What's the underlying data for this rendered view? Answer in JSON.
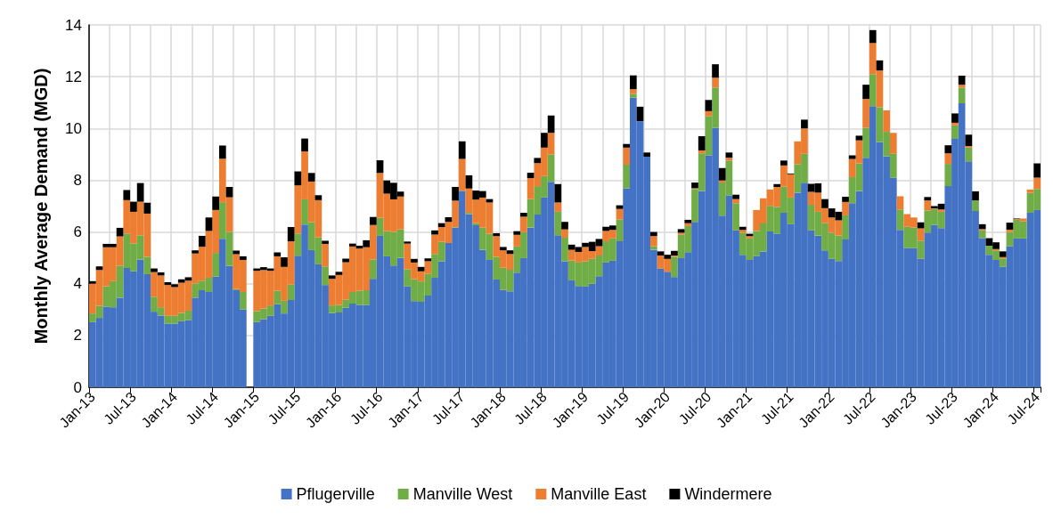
{
  "chart_data": {
    "type": "bar",
    "stacked": true,
    "ylabel": "Monthly Average Demand (MGD)",
    "ylim": [
      0,
      14
    ],
    "yticks": [
      0,
      2,
      4,
      6,
      8,
      10,
      12,
      14
    ],
    "grid": true,
    "legend": "bottom",
    "categories": [
      "Jan-13",
      null,
      null,
      null,
      null,
      null,
      "Jul-13",
      null,
      null,
      null,
      null,
      null,
      "Jan-14",
      null,
      null,
      null,
      null,
      null,
      "Jul-14",
      null,
      null,
      null,
      null,
      null,
      "Jan-15",
      null,
      null,
      null,
      null,
      null,
      "Jul-15",
      null,
      null,
      null,
      null,
      null,
      "Jan-16",
      null,
      null,
      null,
      null,
      null,
      "Jul-16",
      null,
      null,
      null,
      null,
      null,
      "Jan-17",
      null,
      null,
      null,
      null,
      null,
      "Jul-17",
      null,
      null,
      null,
      null,
      null,
      "Jan-18",
      null,
      null,
      null,
      null,
      null,
      "Jul-18",
      null,
      null,
      null,
      null,
      null,
      "Jan-19",
      null,
      null,
      null,
      null,
      null,
      "Jul-19",
      null,
      null,
      null,
      null,
      null,
      "Jan-20",
      null,
      null,
      null,
      null,
      null,
      "Jul-20",
      null,
      null,
      null,
      null,
      null,
      "Jan-21",
      null,
      null,
      null,
      null,
      null,
      "Jul-21",
      null,
      null,
      null,
      null,
      null,
      "Jan-22",
      null,
      null,
      null,
      null,
      null,
      "Jul-22",
      null,
      null,
      null,
      null,
      null,
      "Jan-23",
      null,
      null,
      null,
      null,
      null,
      "Jul-23",
      null,
      null,
      null,
      null,
      null,
      "Jan-24",
      null,
      null,
      null,
      null,
      null,
      "Jul-24"
    ],
    "series": [
      {
        "name": "Pflugerville",
        "color": "#4472c4",
        "values": [
          2.52,
          2.68,
          3.11,
          3.09,
          3.46,
          4.61,
          4.48,
          4.94,
          4.37,
          2.92,
          2.77,
          2.46,
          2.46,
          2.55,
          2.6,
          3.46,
          3.75,
          3.68,
          4.28,
          5.74,
          4.69,
          3.75,
          3.01,
          null,
          2.52,
          2.63,
          2.76,
          3.21,
          2.85,
          3.37,
          5.08,
          6.29,
          5.3,
          4.75,
          3.95,
          2.87,
          2.89,
          3.07,
          3.23,
          3.18,
          3.18,
          4.19,
          5.85,
          5.06,
          4.7,
          5.0,
          3.9,
          3.33,
          3.3,
          3.54,
          4.23,
          4.87,
          5.57,
          6.17,
          7.58,
          6.69,
          6.26,
          5.31,
          4.92,
          4.16,
          3.76,
          3.71,
          4.43,
          4.99,
          6.17,
          6.67,
          7.34,
          7.94,
          5.87,
          4.87,
          4.13,
          3.91,
          3.89,
          4.0,
          4.29,
          4.82,
          4.89,
          5.64,
          7.69,
          11.19,
          10.28,
          8.91,
          5.31,
          4.59,
          4.46,
          4.26,
          4.99,
          5.22,
          6.39,
          7.58,
          8.96,
          10.03,
          6.63,
          7.41,
          6.06,
          5.12,
          4.92,
          5.07,
          5.25,
          6.02,
          5.93,
          6.74,
          6.3,
          7.52,
          7.9,
          6.06,
          5.86,
          5.29,
          4.96,
          4.88,
          5.71,
          7.11,
          7.58,
          8.87,
          10.86,
          9.48,
          8.93,
          8.1,
          6.08,
          5.38,
          5.38,
          4.96,
          5.98,
          6.28,
          6.15,
          7.77,
          9.62,
          10.97,
          8.73,
          6.81,
          5.76,
          5.12,
          4.92,
          4.66,
          5.45,
          5.75,
          5.75,
          6.74,
          6.85
        ]
      },
      {
        "name": "Manville West",
        "color": "#70ad47",
        "values": [
          0.33,
          0.47,
          0.79,
          1.01,
          1.24,
          1.33,
          1.08,
          0.93,
          0.67,
          0.58,
          0.32,
          0.3,
          0.3,
          0.32,
          0.36,
          0.55,
          0.37,
          0.55,
          0.91,
          1.41,
          1.31,
          0.04,
          0.67,
          null,
          0.42,
          0.41,
          0.4,
          0.52,
          0.49,
          0.6,
          0.86,
          0.97,
          1.08,
          1.04,
          0.72,
          0.29,
          0.29,
          0.31,
          0.45,
          0.55,
          0.57,
          0.75,
          0.7,
          0.97,
          1.3,
          1.1,
          0.66,
          0.85,
          0.79,
          0.84,
          0.92,
          0.75,
          0,
          0.02,
          0.02,
          0.05,
          0.08,
          0.86,
          1.01,
          0.88,
          0.86,
          0.83,
          1.01,
          1.0,
          1.1,
          1.1,
          0.82,
          1.06,
          0.91,
          0.91,
          0.77,
          0.91,
          0.98,
          0.96,
          0.8,
          0.82,
          0.86,
          0.84,
          0.91,
          0.15,
          0,
          0,
          0.14,
          0,
          0,
          0.78,
          0.9,
          1.01,
          1.27,
          1.46,
          1.51,
          1.55,
          1.28,
          1.35,
          1.05,
          0.85,
          0.83,
          0.97,
          1.08,
          0.99,
          1.04,
          1.01,
          1.03,
          1.1,
          1.12,
          0.99,
          0.92,
          1.05,
          1.01,
          0.98,
          0.93,
          1.01,
          1.07,
          1.16,
          1.24,
          1.34,
          0.94,
          0.92,
          0.79,
          0.82,
          0.79,
          0.71,
          0.85,
          0.61,
          0.63,
          0.86,
          0.5,
          0.61,
          0.53,
          0.41,
          0.3,
          0.35,
          0.37,
          0.32,
          0.55,
          0.72,
          0.66,
          0.77,
          0.81
        ]
      },
      {
        "name": "Manville East",
        "color": "#ed7d31",
        "values": [
          1.15,
          1.38,
          1.51,
          1.31,
          1.13,
          1.29,
          1.22,
          1.3,
          1.67,
          0.95,
          1.23,
          1.19,
          1.11,
          1.17,
          1.16,
          1.16,
          1.31,
          1.81,
          1.66,
          1.68,
          1.34,
          1.35,
          1.24,
          null,
          1.56,
          1.49,
          1.34,
          1.33,
          1.31,
          1.67,
          1.86,
          1.85,
          1.57,
          1.44,
          0.87,
          1.03,
          1.16,
          1.45,
          1.76,
          1.63,
          1.66,
          1.33,
          1.73,
          1.45,
          1.26,
          1.27,
          0.99,
          0.64,
          0.39,
          0.49,
          0.75,
          0.57,
          0.82,
          1.02,
          1.22,
          0.94,
          0.91,
          1.16,
          1.21,
          0.8,
          0.67,
          0.61,
          0.45,
          0.6,
          0.81,
          0.89,
          1.1,
          0.83,
          0.36,
          0.32,
          0.41,
          0.41,
          0.55,
          0.3,
          0.36,
          0.4,
          0.33,
          0.41,
          0.66,
          0.18,
          0,
          0,
          0.39,
          0.5,
          0.5,
          0.05,
          0.08,
          0.11,
          0.03,
          0.11,
          0.2,
          0.38,
          0.08,
          0.11,
          0.16,
          0.11,
          0.09,
          0.81,
          0.97,
          0.63,
          0.77,
          0.82,
          0.9,
          0.88,
          0.98,
          0.5,
          0.74,
          0.58,
          0.59,
          0.59,
          0.52,
          0.7,
          0.89,
          1.11,
          1.2,
          1.42,
          0.83,
          0.81,
          0.51,
          0.49,
          0.39,
          0.47,
          0.39,
          0.02,
          0.09,
          0.41,
          0.1,
          0.11,
          0.06,
          0,
          0.05,
          0,
          0.05,
          0.05,
          0.09,
          0.03,
          0.11,
          0.13,
          0.44
        ]
      },
      {
        "name": "Windermere",
        "color": "#000000",
        "values": [
          0.1,
          0.14,
          0.13,
          0.13,
          0.33,
          0.39,
          0.39,
          0.72,
          0.42,
          0.14,
          0.12,
          0.11,
          0.11,
          0.13,
          0.13,
          0.12,
          0.42,
          0.52,
          0.52,
          0.51,
          0.4,
          0.14,
          0.14,
          null,
          0.09,
          0.11,
          0.09,
          0.15,
          0.37,
          0.55,
          0.54,
          0.5,
          0.33,
          0.19,
          0.12,
          0.13,
          0.12,
          0.14,
          0.11,
          0.11,
          0.27,
          0.31,
          0.49,
          0.51,
          0.64,
          0.19,
          0.08,
          0.14,
          0.17,
          0.11,
          0.16,
          0.15,
          0.18,
          0.53,
          0.68,
          0.51,
          0.35,
          0.25,
          0.13,
          0.11,
          0.13,
          0.14,
          0.14,
          0.15,
          0.21,
          0.2,
          0.57,
          0.67,
          0.71,
          0.29,
          0.2,
          0.19,
          0.16,
          0.36,
          0.28,
          0.16,
          0.17,
          0.14,
          0.14,
          0.53,
          0.56,
          0.16,
          0.16,
          0.16,
          0.16,
          0.18,
          0.14,
          0.13,
          0.22,
          0.55,
          0.43,
          0.52,
          0.48,
          0.2,
          0.17,
          0.12,
          0.09,
          0,
          0,
          0,
          0.11,
          0.19,
          0.03,
          0,
          0.34,
          0.31,
          0.36,
          0.35,
          0.35,
          0.33,
          0.2,
          0.14,
          0.18,
          0.55,
          0.5,
          0.39,
          0,
          0,
          0,
          0,
          0,
          0.23,
          0.13,
          0.09,
          0.22,
          0.31,
          0.36,
          0.35,
          0.44,
          0.35,
          0.19,
          0.29,
          0.26,
          0.22,
          0.27,
          0.02,
          0,
          0,
          0.55
        ]
      }
    ]
  }
}
